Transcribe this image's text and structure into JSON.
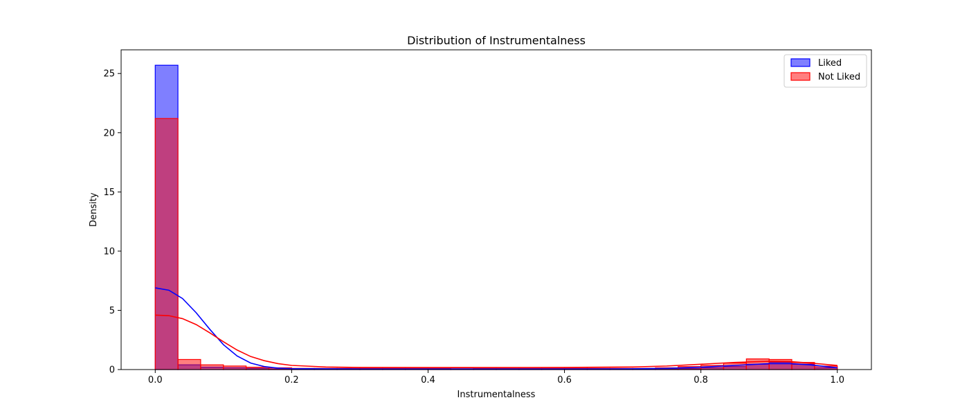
{
  "chart_data": {
    "type": "histogram",
    "title": "Distribution of Instrumentalness",
    "xlabel": "Instrumentalness",
    "ylabel": "Density",
    "xlim": [
      -0.05,
      1.05
    ],
    "ylim": [
      0,
      27
    ],
    "xticks": [
      0.0,
      0.2,
      0.4,
      0.6,
      0.8,
      1.0
    ],
    "xtick_labels": [
      "0.0",
      "0.2",
      "0.4",
      "0.6",
      "0.8",
      "1.0"
    ],
    "yticks": [
      0,
      5,
      10,
      15,
      20,
      25
    ],
    "ytick_labels": [
      "0",
      "5",
      "10",
      "15",
      "20",
      "25"
    ],
    "grid": false,
    "legend_position": "top-right",
    "bin_width": 0.0333,
    "series": [
      {
        "name": "Liked",
        "color": "#0000ff",
        "bins": [
          [
            0.0,
            25.7
          ],
          [
            0.0333,
            0.4
          ],
          [
            0.0667,
            0.2
          ],
          [
            0.1,
            0.15
          ],
          [
            0.1333,
            0.1
          ],
          [
            0.1667,
            0.05
          ],
          [
            0.2,
            0.05
          ],
          [
            0.2333,
            0.04
          ],
          [
            0.2667,
            0.04
          ],
          [
            0.3,
            0.04
          ],
          [
            0.3333,
            0.04
          ],
          [
            0.3667,
            0.05
          ],
          [
            0.4,
            0.05
          ],
          [
            0.4333,
            0.05
          ],
          [
            0.4667,
            0.05
          ],
          [
            0.5,
            0.05
          ],
          [
            0.5333,
            0.05
          ],
          [
            0.5667,
            0.05
          ],
          [
            0.6,
            0.05
          ],
          [
            0.6333,
            0.05
          ],
          [
            0.6667,
            0.05
          ],
          [
            0.7,
            0.05
          ],
          [
            0.7333,
            0.06
          ],
          [
            0.7667,
            0.08
          ],
          [
            0.8,
            0.15
          ],
          [
            0.8333,
            0.25
          ],
          [
            0.8667,
            0.45
          ],
          [
            0.9,
            0.62
          ],
          [
            0.9333,
            0.45
          ],
          [
            0.9667,
            0.15
          ]
        ],
        "kde": [
          [
            0.0,
            6.9
          ],
          [
            0.02,
            6.7
          ],
          [
            0.04,
            6.0
          ],
          [
            0.06,
            4.8
          ],
          [
            0.08,
            3.4
          ],
          [
            0.1,
            2.1
          ],
          [
            0.12,
            1.15
          ],
          [
            0.14,
            0.55
          ],
          [
            0.16,
            0.25
          ],
          [
            0.18,
            0.12
          ],
          [
            0.2,
            0.08
          ],
          [
            0.25,
            0.06
          ],
          [
            0.3,
            0.05
          ],
          [
            0.4,
            0.05
          ],
          [
            0.5,
            0.05
          ],
          [
            0.6,
            0.05
          ],
          [
            0.7,
            0.06
          ],
          [
            0.75,
            0.1
          ],
          [
            0.8,
            0.2
          ],
          [
            0.85,
            0.35
          ],
          [
            0.9,
            0.5
          ],
          [
            0.93,
            0.5
          ],
          [
            0.96,
            0.4
          ],
          [
            1.0,
            0.15
          ]
        ]
      },
      {
        "name": "Not Liked",
        "color": "#ff0000",
        "bins": [
          [
            0.0,
            21.2
          ],
          [
            0.0333,
            0.85
          ],
          [
            0.0667,
            0.4
          ],
          [
            0.1,
            0.3
          ],
          [
            0.1333,
            0.2
          ],
          [
            0.1667,
            0.15
          ],
          [
            0.2,
            0.1
          ],
          [
            0.2333,
            0.1
          ],
          [
            0.2667,
            0.1
          ],
          [
            0.3,
            0.1
          ],
          [
            0.3333,
            0.1
          ],
          [
            0.3667,
            0.1
          ],
          [
            0.4,
            0.1
          ],
          [
            0.4333,
            0.15
          ],
          [
            0.4667,
            0.1
          ],
          [
            0.5,
            0.1
          ],
          [
            0.5333,
            0.1
          ],
          [
            0.5667,
            0.1
          ],
          [
            0.6,
            0.1
          ],
          [
            0.6333,
            0.1
          ],
          [
            0.6667,
            0.1
          ],
          [
            0.7,
            0.1
          ],
          [
            0.7333,
            0.15
          ],
          [
            0.7667,
            0.25
          ],
          [
            0.8,
            0.35
          ],
          [
            0.8333,
            0.55
          ],
          [
            0.8667,
            0.9
          ],
          [
            0.9,
            0.85
          ],
          [
            0.9333,
            0.6
          ],
          [
            0.9667,
            0.3
          ]
        ],
        "kde": [
          [
            0.0,
            4.6
          ],
          [
            0.02,
            4.55
          ],
          [
            0.04,
            4.3
          ],
          [
            0.06,
            3.8
          ],
          [
            0.08,
            3.1
          ],
          [
            0.1,
            2.35
          ],
          [
            0.12,
            1.65
          ],
          [
            0.14,
            1.1
          ],
          [
            0.16,
            0.75
          ],
          [
            0.18,
            0.5
          ],
          [
            0.2,
            0.35
          ],
          [
            0.25,
            0.22
          ],
          [
            0.3,
            0.18
          ],
          [
            0.4,
            0.17
          ],
          [
            0.5,
            0.17
          ],
          [
            0.6,
            0.18
          ],
          [
            0.7,
            0.22
          ],
          [
            0.75,
            0.3
          ],
          [
            0.8,
            0.45
          ],
          [
            0.85,
            0.6
          ],
          [
            0.9,
            0.7
          ],
          [
            0.93,
            0.68
          ],
          [
            0.96,
            0.55
          ],
          [
            1.0,
            0.35
          ]
        ]
      }
    ]
  }
}
